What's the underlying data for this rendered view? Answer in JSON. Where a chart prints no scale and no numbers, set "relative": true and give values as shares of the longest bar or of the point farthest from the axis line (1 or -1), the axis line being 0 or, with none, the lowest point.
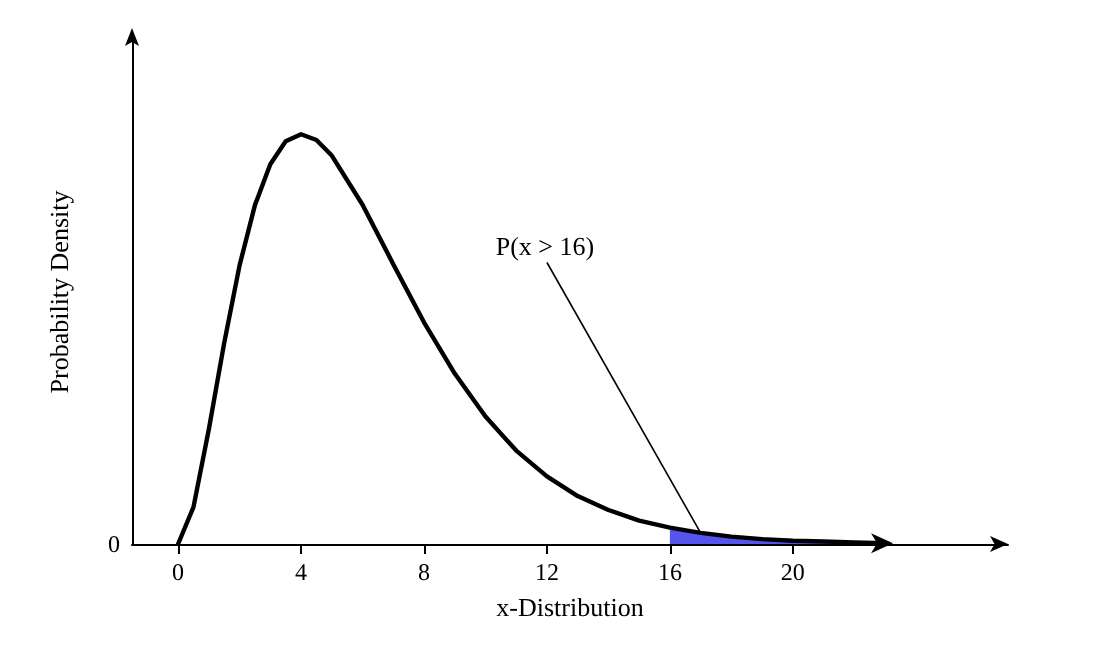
{
  "chart_data": {
    "type": "line",
    "relative": true,
    "xlabel": "x-Distribution",
    "ylabel": "Probability Density",
    "xlim": [
      -1.5,
      27
    ],
    "xticks": [
      0,
      4,
      8,
      12,
      16,
      20
    ],
    "marker": "none",
    "line_style": "solid",
    "annotations": [
      "0",
      {
        "text": "P(x > 16)",
        "x": 17,
        "y": 0.027
      }
    ],
    "series": [
      {
        "color": "#000000",
        "x": [
          0,
          0.5,
          1,
          1.5,
          2,
          2.5,
          3,
          3.5,
          4,
          4.5,
          5,
          6,
          7,
          8,
          9,
          10,
          11,
          12,
          13,
          14,
          15,
          16,
          17,
          18,
          19,
          20,
          21,
          22,
          23
        ],
        "values": [
          0,
          0.09,
          0.28,
          0.491,
          0.68,
          0.827,
          0.927,
          0.983,
          1,
          0.986,
          0.948,
          0.828,
          0.683,
          0.541,
          0.416,
          0.311,
          0.228,
          0.165,
          0.117,
          0.083,
          0.057,
          0.04,
          0.027,
          0.018,
          0.012,
          0.008,
          0.006,
          0.004,
          0.002
        ]
      },
      {
        "type": "area",
        "color": "#5555ee",
        "x": [
          16,
          17,
          18,
          19,
          20,
          21,
          22,
          23
        ],
        "values": [
          0.04,
          0.027,
          0.018,
          0.012,
          0.008,
          0.006,
          0.004,
          0.002
        ]
      }
    ]
  }
}
